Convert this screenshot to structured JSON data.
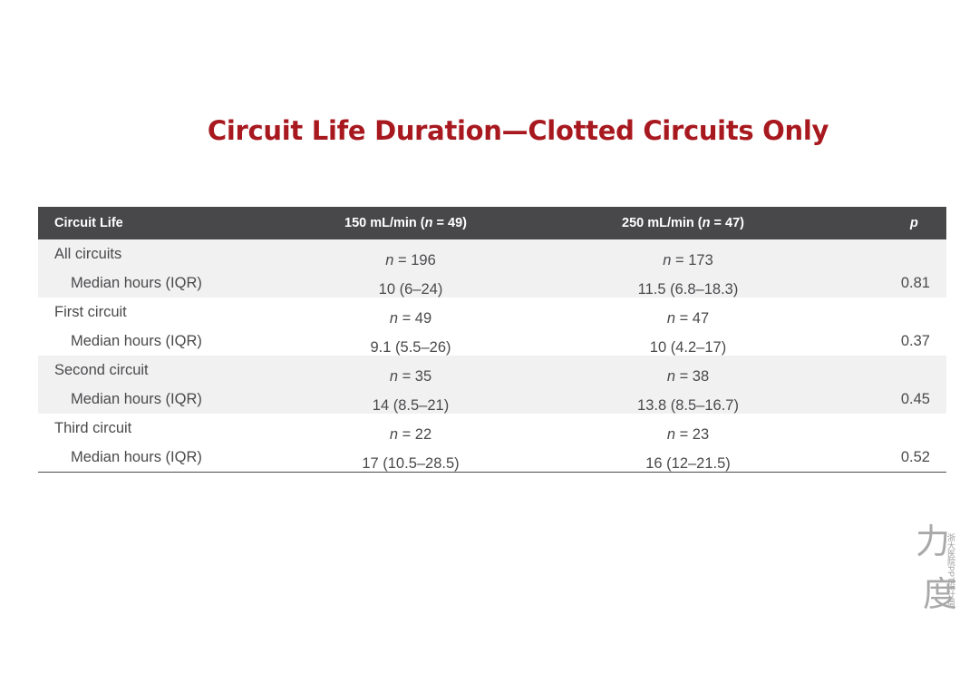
{
  "title": "Circuit Life Duration—Clotted Circuits Only",
  "table": {
    "headers": {
      "label": "Circuit Life",
      "col150_prefix": "150 mL/min (",
      "col150_n": "n",
      "col150_suffix": " = 49)",
      "col250_prefix": "250 mL/min (",
      "col250_n": "n",
      "col250_suffix": " = 47)",
      "p": "p"
    },
    "groups": [
      {
        "label": "All circuits",
        "n150": " = 196",
        "n250": " = 173",
        "sub_label": "Median hours (IQR)",
        "m150": "10 (6–24)",
        "m250": "11.5 (6.8–18.3)",
        "p": "0.81"
      },
      {
        "label": "First circuit",
        "n150": " = 49",
        "n250": " = 47",
        "sub_label": "Median hours (IQR)",
        "m150": "9.1 (5.5–26)",
        "m250": "10 (4.2–17)",
        "p": "0.37"
      },
      {
        "label": "Second circuit",
        "n150": " = 35",
        "n250": " = 38",
        "sub_label": "Median hours (IQR)",
        "m150": "14 (8.5–21)",
        "m250": "13.8 (8.5–16.7)",
        "p": "0.45"
      },
      {
        "label": "Third circuit",
        "n150": " = 22",
        "n250": " = 23",
        "sub_label": "Median hours (IQR)",
        "m150": "17 (10.5–28.5)",
        "m250": "16 (12–21.5)",
        "p": "0.52"
      }
    ],
    "n_symbol": "n"
  },
  "watermark": {
    "char1": "力",
    "char2": "度",
    "text": "浙大医院PPT设计局"
  },
  "colors": {
    "title": "#a8191f",
    "header_bg": "#48484a",
    "shaded_row": "#f1f1f2"
  }
}
